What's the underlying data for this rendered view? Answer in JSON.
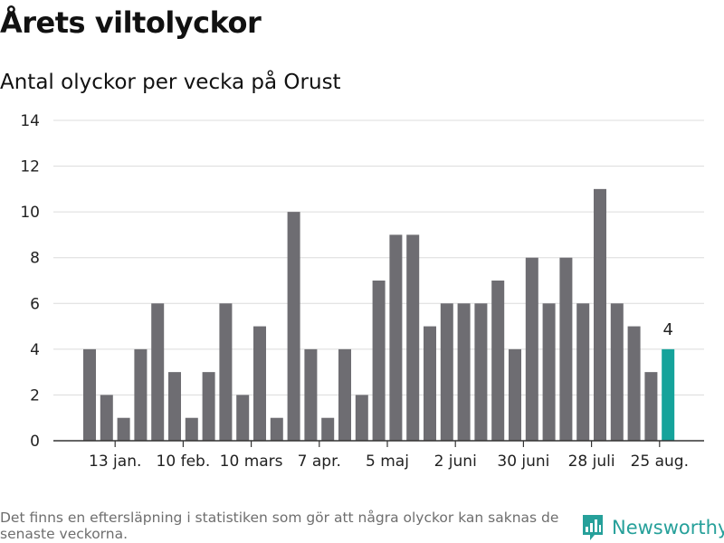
{
  "header": {
    "title": "Årets viltolyckor",
    "subtitle": "Antal olyckor per vecka på Orust"
  },
  "footer": {
    "note": "Det finns en eftersläpning i statistiken som gör att några olyckor kan saknas de senaste veckorna.",
    "brand": "Newsworthy"
  },
  "colors": {
    "bar": "#6e6d72",
    "highlight": "#15a39b",
    "grid": "#dcdcdc",
    "axis": "#333333",
    "brand": "#26a09a"
  },
  "chart_data": {
    "type": "bar",
    "title": "Årets viltolyckor",
    "subtitle": "Antal olyckor per vecka på Orust",
    "values": [
      4,
      2,
      1,
      4,
      6,
      3,
      1,
      3,
      6,
      2,
      5,
      1,
      10,
      4,
      1,
      4,
      2,
      7,
      9,
      9,
      5,
      6,
      6,
      6,
      7,
      4,
      8,
      6,
      8,
      6,
      11,
      6,
      5,
      3,
      4
    ],
    "highlight_index": 34,
    "highlight_label": "4",
    "x_tick_labels": [
      {
        "label": "13 jan.",
        "week": 2
      },
      {
        "label": "10 feb.",
        "week": 6
      },
      {
        "label": "10 mars",
        "week": 10
      },
      {
        "label": "7 apr.",
        "week": 14
      },
      {
        "label": "5 maj",
        "week": 18
      },
      {
        "label": "2 juni",
        "week": 22
      },
      {
        "label": "30 juni",
        "week": 26
      },
      {
        "label": "28 juli",
        "week": 30
      },
      {
        "label": "25 aug.",
        "week": 34
      }
    ],
    "ylim": [
      0,
      14
    ],
    "y_ticks": [
      0,
      2,
      4,
      6,
      8,
      10,
      12,
      14
    ],
    "grid": true,
    "legend": "none"
  }
}
